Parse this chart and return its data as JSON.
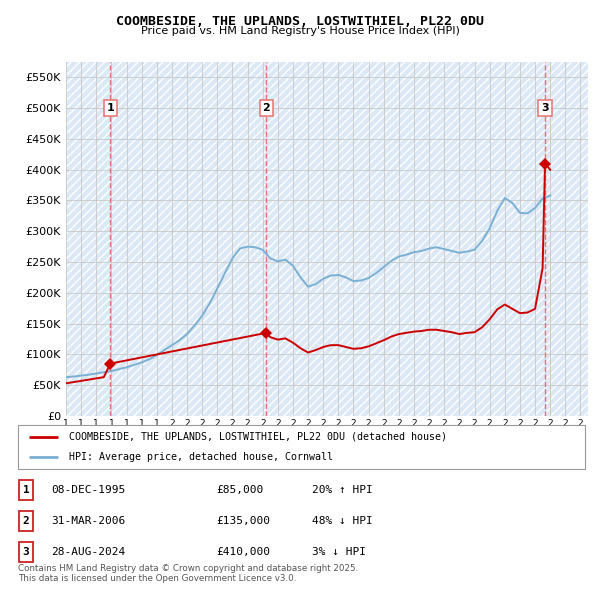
{
  "title": "COOMBESIDE, THE UPLANDS, LOSTWITHIEL, PL22 0DU",
  "subtitle": "Price paid vs. HM Land Registry's House Price Index (HPI)",
  "ylabel_ticks": [
    "£0",
    "£50K",
    "£100K",
    "£150K",
    "£200K",
    "£250K",
    "£300K",
    "£350K",
    "£400K",
    "£450K",
    "£500K",
    "£550K"
  ],
  "ylim": [
    0,
    575000
  ],
  "xlim_start": 1993.0,
  "xlim_end": 2027.5,
  "sale_dates": [
    1995.92,
    2006.25,
    2024.66
  ],
  "sale_prices": [
    85000,
    135000,
    410000
  ],
  "sale_labels": [
    "1",
    "2",
    "3"
  ],
  "red_line_color": "#cc0000",
  "blue_line_color": "#7ab0d4",
  "dashed_line_color": "#e87070",
  "marker_color": "#cc0000",
  "grid_color": "#c8c8c8",
  "legend_entries": [
    "COOMBESIDE, THE UPLANDS, LOSTWITHIEL, PL22 0DU (detached house)",
    "HPI: Average price, detached house, Cornwall"
  ],
  "table_rows": [
    {
      "label": "1",
      "date": "08-DEC-1995",
      "price": "£85,000",
      "change": "20% ↑ HPI"
    },
    {
      "label": "2",
      "date": "31-MAR-2006",
      "price": "£135,000",
      "change": "48% ↓ HPI"
    },
    {
      "label": "3",
      "date": "28-AUG-2024",
      "price": "£410,000",
      "change": "3% ↓ HPI"
    }
  ],
  "footer": "Contains HM Land Registry data © Crown copyright and database right 2025.\nThis data is licensed under the Open Government Licence v3.0.",
  "hpi_years": [
    1993.0,
    1993.5,
    1994.0,
    1994.5,
    1995.0,
    1995.5,
    1996.0,
    1996.5,
    1997.0,
    1997.5,
    1998.0,
    1998.5,
    1999.0,
    1999.5,
    2000.0,
    2000.5,
    2001.0,
    2001.5,
    2002.0,
    2002.5,
    2003.0,
    2003.5,
    2004.0,
    2004.5,
    2005.0,
    2005.5,
    2006.0,
    2006.5,
    2007.0,
    2007.5,
    2008.0,
    2008.5,
    2009.0,
    2009.5,
    2010.0,
    2010.5,
    2011.0,
    2011.5,
    2012.0,
    2012.5,
    2013.0,
    2013.5,
    2014.0,
    2014.5,
    2015.0,
    2015.5,
    2016.0,
    2016.5,
    2017.0,
    2017.5,
    2018.0,
    2018.5,
    2019.0,
    2019.5,
    2020.0,
    2020.5,
    2021.0,
    2021.5,
    2022.0,
    2022.5,
    2023.0,
    2023.5,
    2024.0,
    2024.5,
    2025.0
  ],
  "hpi_values": [
    63000,
    64000,
    65500,
    67000,
    69000,
    71000,
    73000,
    76000,
    79000,
    83000,
    87000,
    92000,
    99000,
    107000,
    115000,
    123000,
    133000,
    147000,
    163000,
    183000,
    207000,
    232000,
    256000,
    272000,
    275000,
    274000,
    270000,
    256000,
    251000,
    254000,
    244000,
    225000,
    210000,
    214000,
    223000,
    228000,
    229000,
    225000,
    219000,
    220000,
    224000,
    232000,
    242000,
    252000,
    259000,
    262000,
    266000,
    268000,
    272000,
    274000,
    271000,
    268000,
    265000,
    267000,
    270000,
    284000,
    305000,
    333000,
    354000,
    346000,
    330000,
    329000,
    338000,
    353000,
    358000
  ],
  "red_years": [
    1993.0,
    1993.5,
    1994.0,
    1994.5,
    1995.0,
    1995.5,
    1995.92,
    2006.25,
    2006.5,
    2007.0,
    2007.5,
    2008.0,
    2008.5,
    2009.0,
    2009.5,
    2010.0,
    2010.5,
    2011.0,
    2011.5,
    2012.0,
    2012.5,
    2013.0,
    2013.5,
    2014.0,
    2014.5,
    2015.0,
    2015.5,
    2016.0,
    2016.5,
    2017.0,
    2017.5,
    2018.0,
    2018.5,
    2019.0,
    2019.5,
    2020.0,
    2020.5,
    2021.0,
    2021.5,
    2022.0,
    2022.5,
    2023.0,
    2023.5,
    2024.0,
    2024.5,
    2024.66,
    2025.0
  ],
  "red_values": [
    53000,
    55000,
    57000,
    59000,
    61000,
    63000,
    85000,
    135000,
    128000,
    124000,
    126000,
    119000,
    110000,
    103000,
    107000,
    112000,
    115000,
    115000,
    112000,
    109000,
    110000,
    113000,
    118000,
    123000,
    129000,
    133000,
    135000,
    137000,
    138000,
    140000,
    140000,
    138000,
    136000,
    133000,
    135000,
    136000,
    144000,
    157000,
    173000,
    181000,
    174000,
    167000,
    168000,
    174000,
    240000,
    410000,
    400000
  ]
}
